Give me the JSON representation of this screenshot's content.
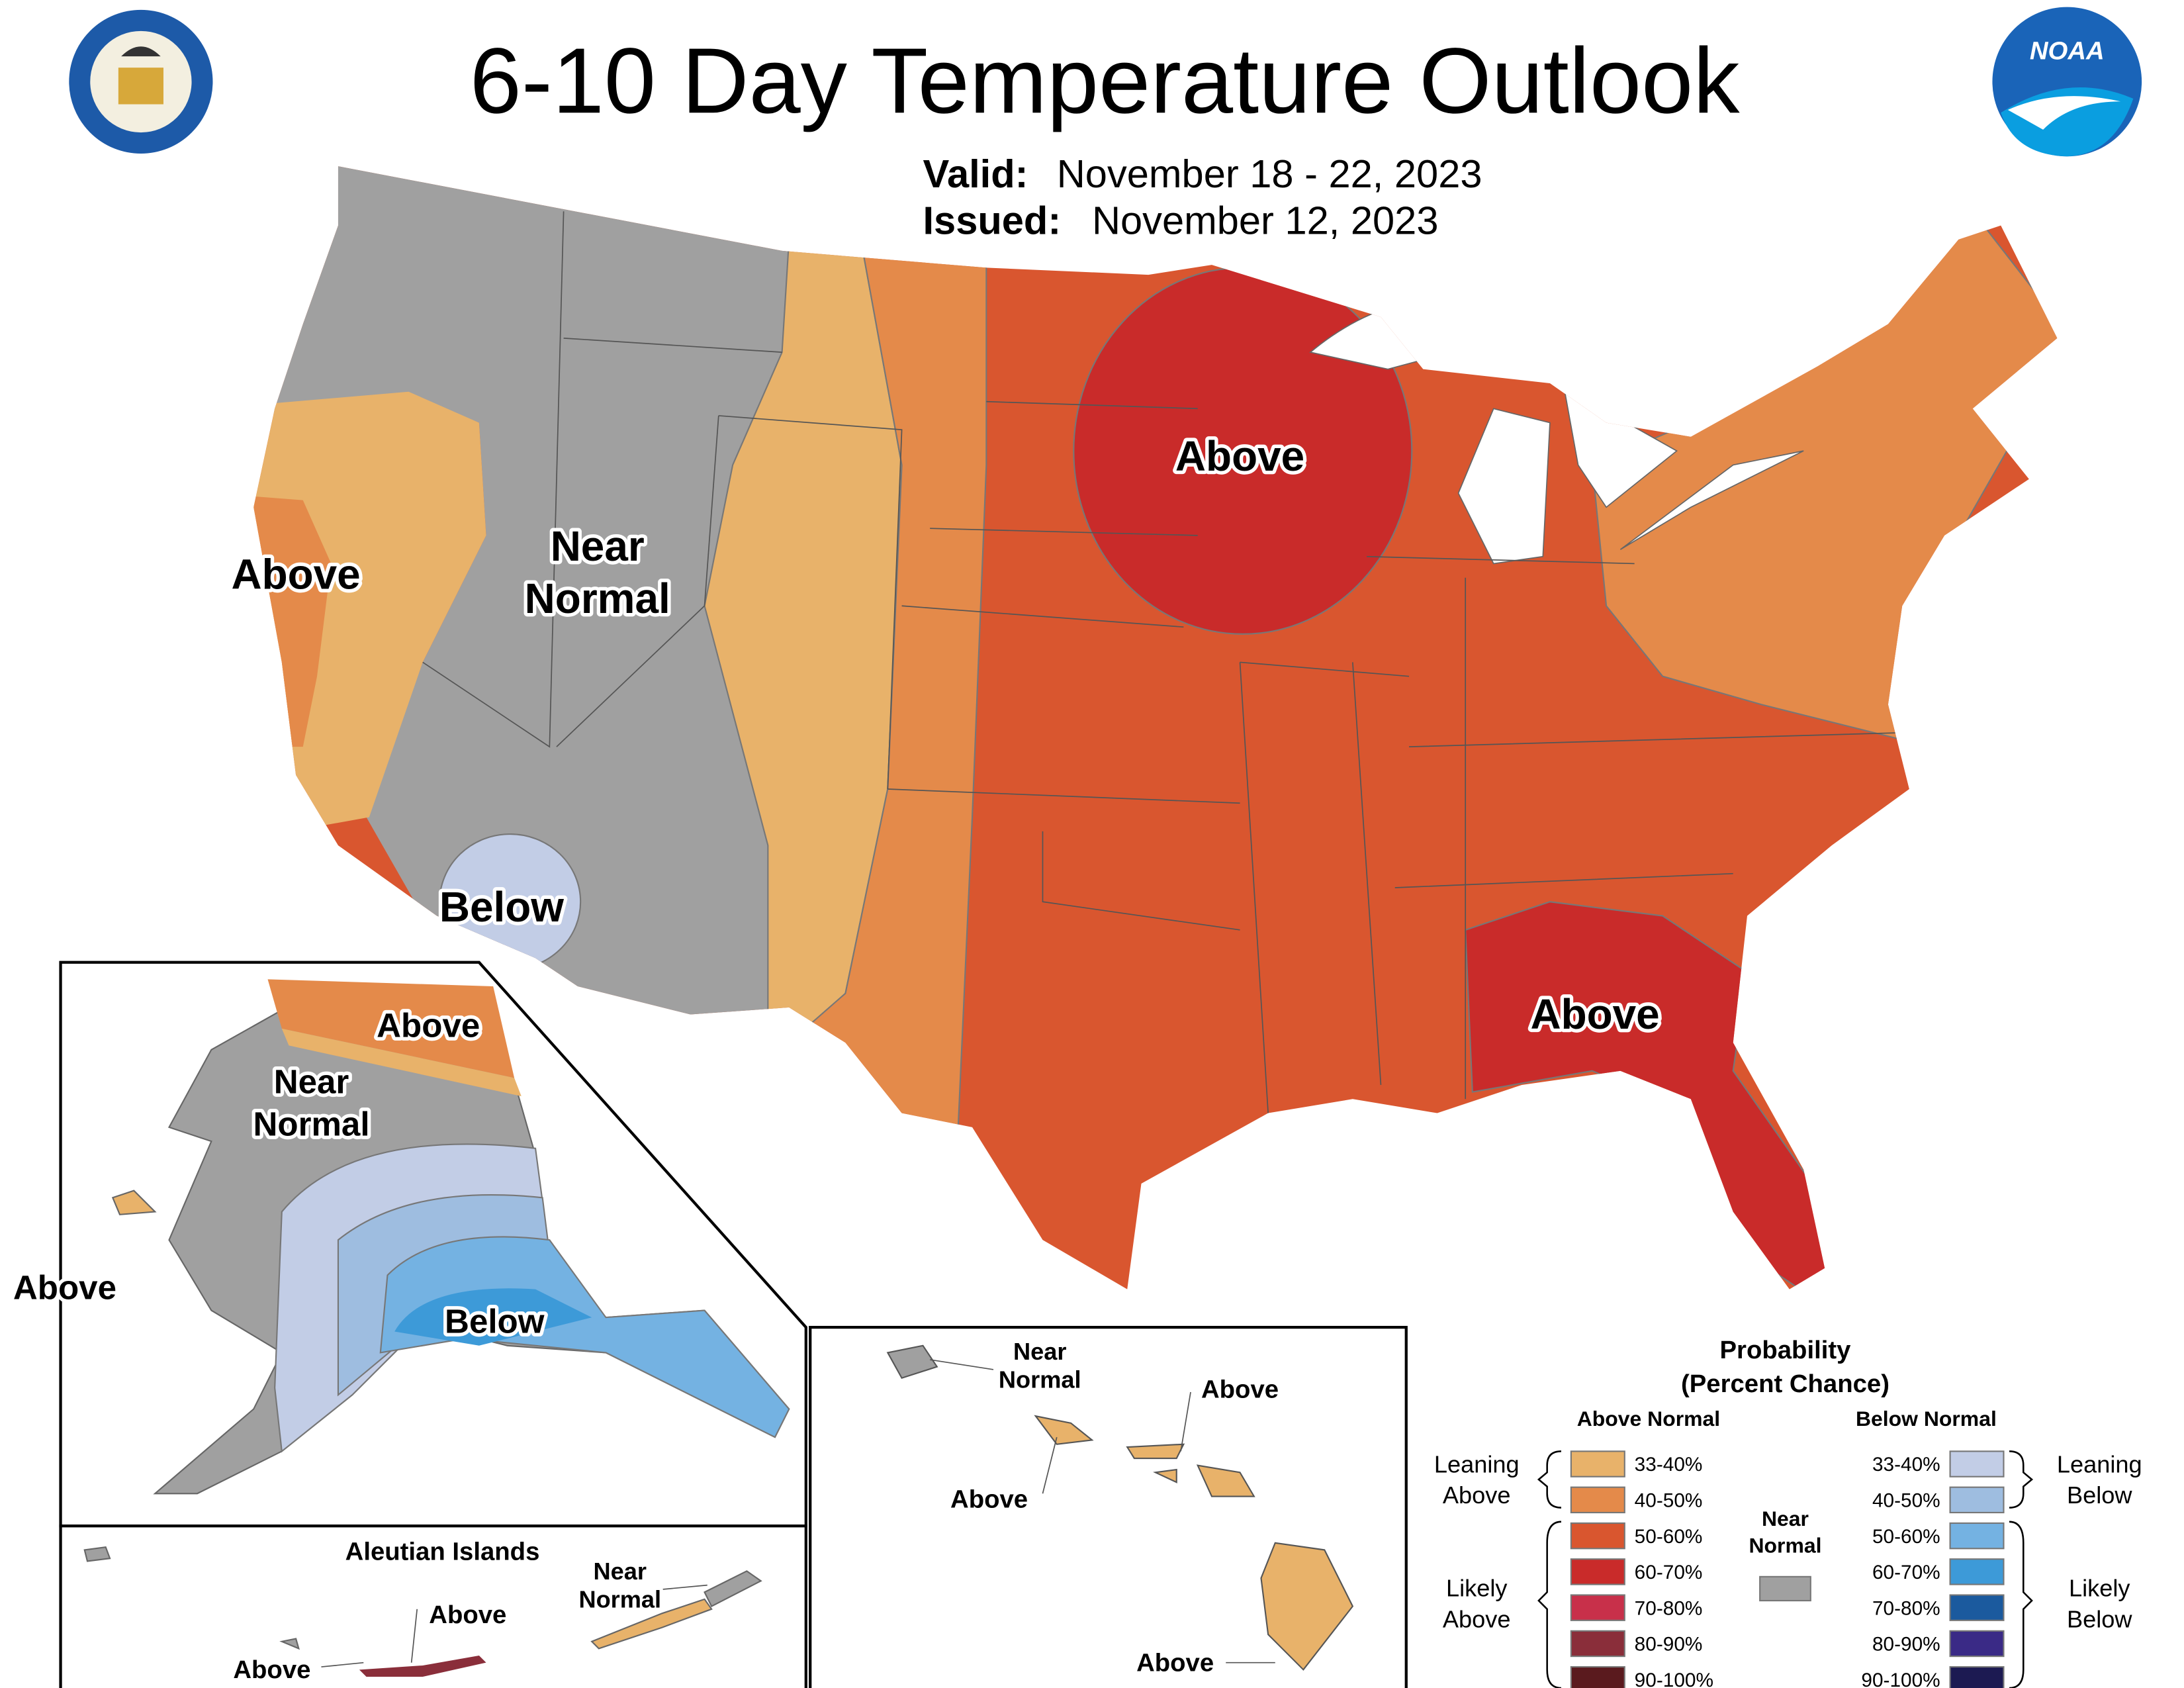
{
  "header": {
    "title": "6-10 Day Temperature Outlook",
    "valid_label": "Valid:",
    "valid": "November 18 - 22, 2023",
    "issued_label": "Issued:",
    "issued": "November 12, 2023",
    "noaa_logo": "NOAA"
  },
  "map_labels": {
    "conus": {
      "above_west": "Above",
      "near_normal": [
        "Near",
        "Normal"
      ],
      "below": "Below",
      "above_north": "Above",
      "above_southeast": "Above"
    },
    "alaska": {
      "above_north": "Above",
      "near_normal": [
        "Near",
        "Normal"
      ],
      "below": "Below",
      "above_west": "Above"
    },
    "aleutians": {
      "title": "Aleutian Islands",
      "near_normal": [
        "Near",
        "Normal"
      ],
      "above_1": "Above",
      "above_2": "Above"
    },
    "hawaii": {
      "near_normal": [
        "Near",
        "Normal"
      ],
      "above_1": "Above",
      "above_2": "Above",
      "above_3": "Above"
    }
  },
  "legend": {
    "title": "Probability",
    "subtitle": "(Percent Chance)",
    "above_heading": "Above Normal",
    "below_heading": "Below Normal",
    "above": [
      {
        "label": "33-40%",
        "color": "#e8b26a"
      },
      {
        "label": "40-50%",
        "color": "#e48a4a"
      },
      {
        "label": "50-60%",
        "color": "#d9562f"
      },
      {
        "label": "60-70%",
        "color": "#c92b2a"
      },
      {
        "label": "70-80%",
        "color": "#c8304a"
      },
      {
        "label": "80-90%",
        "color": "#8a2e3a"
      },
      {
        "label": "90-100%",
        "color": "#5a1a1e"
      }
    ],
    "below": [
      {
        "label": "33-40%",
        "color": "#c2cde6"
      },
      {
        "label": "40-50%",
        "color": "#9ebde0"
      },
      {
        "label": "50-60%",
        "color": "#74b2e2"
      },
      {
        "label": "60-70%",
        "color": "#3d9ad8"
      },
      {
        "label": "70-80%",
        "color": "#1b5a9e"
      },
      {
        "label": "80-90%",
        "color": "#3a2a86"
      },
      {
        "label": "90-100%",
        "color": "#1c1a52"
      }
    ],
    "near_normal": [
      "Near",
      "Normal"
    ],
    "near_color": "#a0a0a0",
    "leaning_above": [
      "Leaning",
      "Above"
    ],
    "likely_above": [
      "Likely",
      "Above"
    ],
    "leaning_below": [
      "Leaning",
      "Below"
    ],
    "likely_below": [
      "Likely",
      "Below"
    ]
  }
}
